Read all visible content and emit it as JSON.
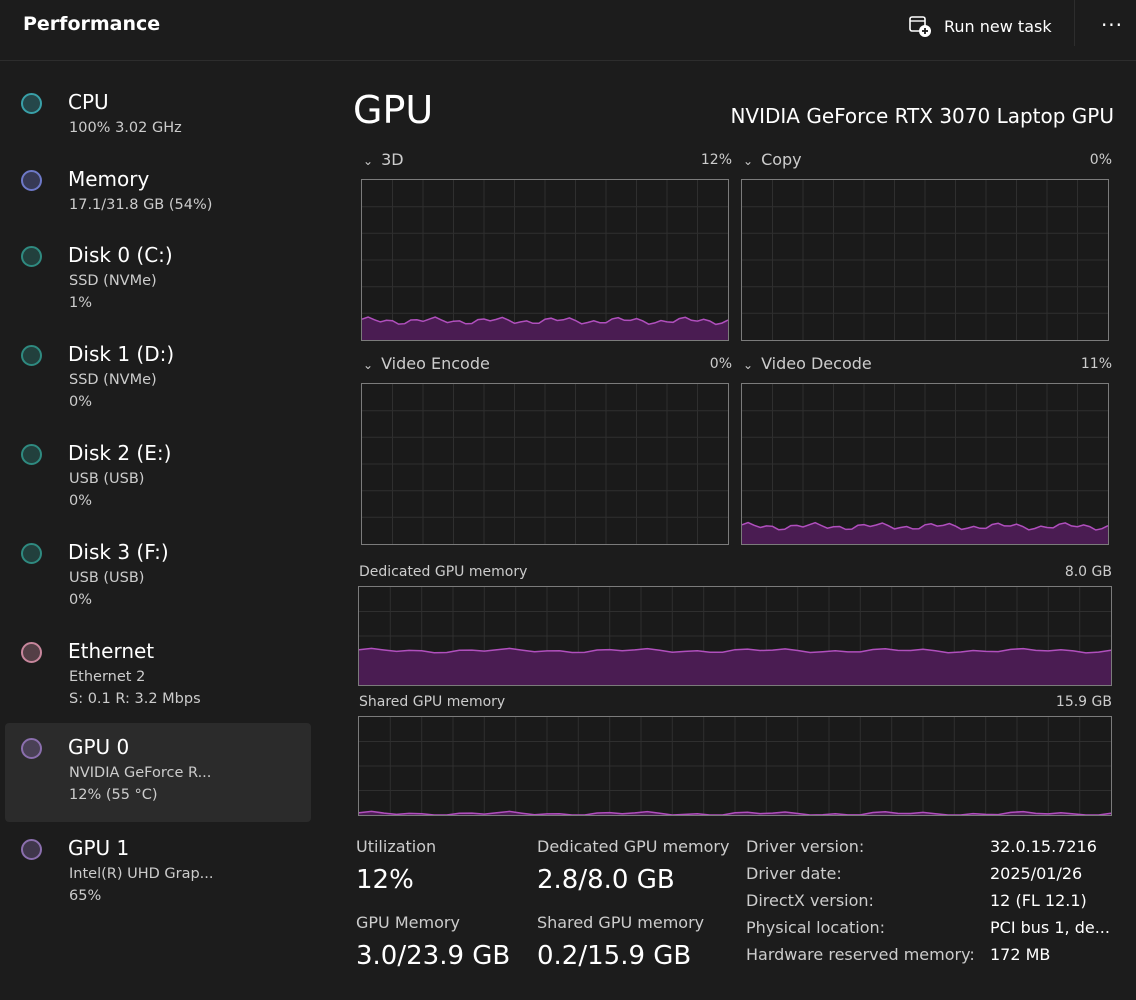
{
  "header": {
    "title": "Performance",
    "run_task_label": "Run new task",
    "more_label": "···"
  },
  "sidebar": {
    "items": [
      {
        "name": "CPU",
        "sub1": "100%  3.02 GHz",
        "sub2": "",
        "color": "#39a0a8"
      },
      {
        "name": "Memory",
        "sub1": "17.1/31.8 GB (54%)",
        "sub2": "",
        "color": "#6e79c8"
      },
      {
        "name": "Disk 0 (C:)",
        "sub1": "SSD (NVMe)",
        "sub2": "1%",
        "color": "#2f8a80"
      },
      {
        "name": "Disk 1 (D:)",
        "sub1": "SSD (NVMe)",
        "sub2": "0%",
        "color": "#2f8a80"
      },
      {
        "name": "Disk 2 (E:)",
        "sub1": "USB (USB)",
        "sub2": "0%",
        "color": "#2f8a80"
      },
      {
        "name": "Disk 3 (F:)",
        "sub1": "USB (USB)",
        "sub2": "0%",
        "color": "#2f8a80"
      },
      {
        "name": "Ethernet",
        "sub1": "Ethernet 2",
        "sub2": "S: 0.1  R: 3.2 Mbps",
        "color": "#c7869c"
      },
      {
        "name": "GPU 0",
        "sub1": "NVIDIA GeForce R...",
        "sub2": "12%  (55 °C)",
        "color": "#8b6fae"
      },
      {
        "name": "GPU 1",
        "sub1": "Intel(R) UHD Grap...",
        "sub2": "65%",
        "color": "#8b6fae"
      }
    ]
  },
  "main": {
    "title": "GPU",
    "model": "NVIDIA GeForce RTX 3070 Laptop GPU",
    "engines": [
      {
        "label": "3D",
        "percent": "12%",
        "level": 0.12
      },
      {
        "label": "Copy",
        "percent": "0%",
        "level": 0
      },
      {
        "label": "Video Encode",
        "percent": "0%",
        "level": 0
      },
      {
        "label": "Video Decode",
        "percent": "11%",
        "level": 0.11
      }
    ],
    "dedicated_memory": {
      "label": "Dedicated GPU memory",
      "max": "8.0 GB",
      "level": 0.35
    },
    "shared_memory": {
      "label": "Shared GPU memory",
      "max": "15.9 GB",
      "level": 0.013
    },
    "stats": {
      "utilization": {
        "label": "Utilization",
        "value": "12%"
      },
      "dedicated": {
        "label": "Dedicated GPU memory",
        "value": "2.8/8.0 GB"
      },
      "gpu_memory": {
        "label": "GPU Memory",
        "value": "3.0/23.9 GB"
      },
      "shared": {
        "label": "Shared GPU memory",
        "value": "0.2/15.9 GB"
      }
    },
    "info": [
      {
        "key": "Driver version:",
        "value": "32.0.15.7216"
      },
      {
        "key": "Driver date:",
        "value": "2025/01/26"
      },
      {
        "key": "DirectX version:",
        "value": "12 (FL 12.1)"
      },
      {
        "key": "Physical location:",
        "value": "PCI bus 1, de..."
      },
      {
        "key": "Hardware reserved memory:",
        "value": "172 MB"
      }
    ]
  },
  "colors": {
    "graph_line": "#b04fbd",
    "graph_fill": "#4a1c52",
    "grid": "#2f2f2f",
    "border": "#7b7b7b"
  }
}
